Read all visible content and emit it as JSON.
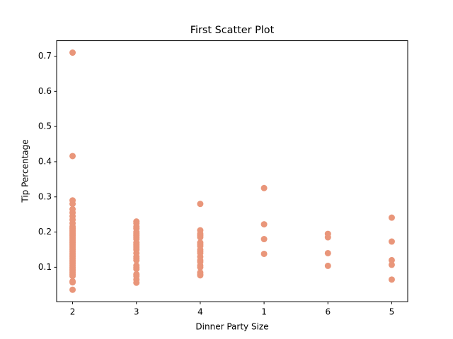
{
  "chart_data": {
    "type": "scatter",
    "title": "First Scatter Plot",
    "x_label": "Dinner Party Size",
    "y_label": "Tip Percentage",
    "categories": [
      "2",
      "3",
      "4",
      "1",
      "6",
      "5"
    ],
    "color": "#e9967a",
    "ylim": [
      0.002,
      0.744
    ],
    "yticks": [
      0.1,
      0.2,
      0.3,
      0.4,
      0.5,
      0.6,
      0.7
    ],
    "x": [
      "2",
      "2",
      "2",
      "2",
      "2",
      "2",
      "2",
      "2",
      "2",
      "2",
      "2",
      "2",
      "2",
      "2",
      "2",
      "2",
      "2",
      "2",
      "2",
      "2",
      "2",
      "2",
      "2",
      "2",
      "2",
      "2",
      "2",
      "2",
      "2",
      "2",
      "2",
      "2",
      "2",
      "2",
      "2",
      "2",
      "2",
      "2",
      "2",
      "2",
      "2",
      "3",
      "3",
      "3",
      "3",
      "3",
      "3",
      "3",
      "3",
      "3",
      "3",
      "3",
      "3",
      "3",
      "3",
      "3",
      "3",
      "3",
      "3",
      "3",
      "3",
      "3",
      "3",
      "3",
      "3",
      "3",
      "4",
      "4",
      "4",
      "4",
      "4",
      "4",
      "4",
      "4",
      "4",
      "4",
      "4",
      "4",
      "4",
      "4",
      "4",
      "4",
      "4",
      "4",
      "4",
      "1",
      "1",
      "1",
      "1",
      "6",
      "6",
      "6",
      "6",
      "5",
      "5",
      "5",
      "5",
      "5"
    ],
    "values": [
      0.71,
      0.416,
      0.29,
      0.28,
      0.265,
      0.255,
      0.245,
      0.235,
      0.225,
      0.215,
      0.21,
      0.205,
      0.2,
      0.195,
      0.19,
      0.185,
      0.18,
      0.175,
      0.17,
      0.165,
      0.16,
      0.155,
      0.15,
      0.145,
      0.14,
      0.135,
      0.13,
      0.125,
      0.12,
      0.115,
      0.11,
      0.105,
      0.1,
      0.095,
      0.09,
      0.085,
      0.08,
      0.075,
      0.06,
      0.057,
      0.036,
      0.23,
      0.225,
      0.215,
      0.21,
      0.2,
      0.195,
      0.19,
      0.185,
      0.18,
      0.17,
      0.165,
      0.16,
      0.155,
      0.15,
      0.14,
      0.13,
      0.125,
      0.12,
      0.105,
      0.1,
      0.095,
      0.08,
      0.075,
      0.065,
      0.056,
      0.28,
      0.205,
      0.195,
      0.19,
      0.185,
      0.17,
      0.165,
      0.16,
      0.15,
      0.145,
      0.14,
      0.13,
      0.12,
      0.115,
      0.105,
      0.1,
      0.085,
      0.08,
      0.077,
      0.325,
      0.222,
      0.18,
      0.138,
      0.195,
      0.185,
      0.14,
      0.104,
      0.241,
      0.173,
      0.12,
      0.107,
      0.065
    ]
  }
}
